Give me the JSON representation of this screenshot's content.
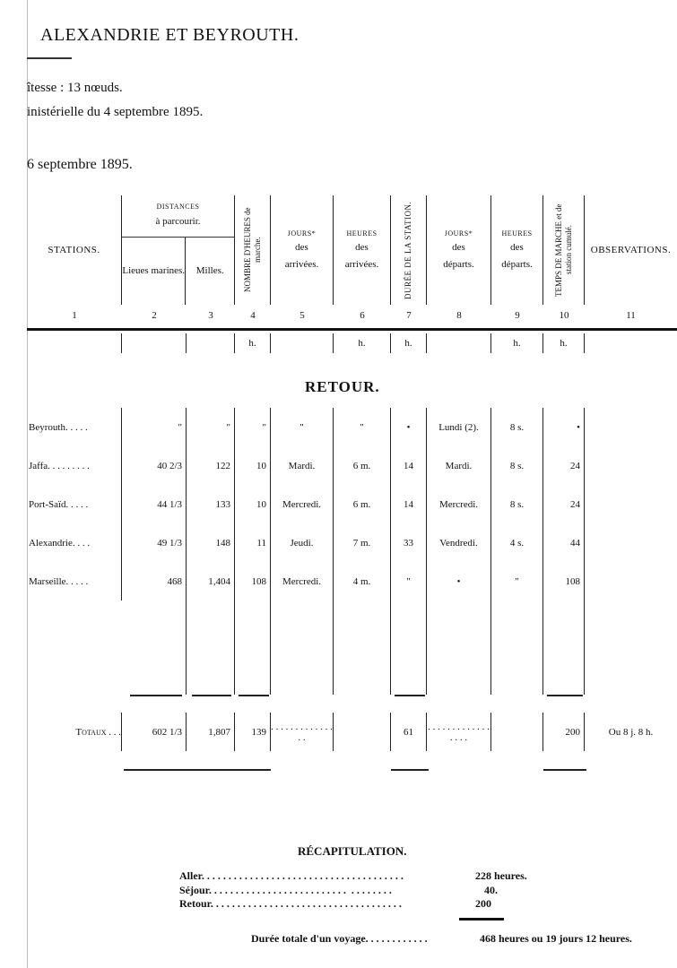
{
  "header": {
    "title": "ALEXANDRIE ET BEYROUTH.",
    "speed": "îtesse : 13 nœuds.",
    "decision": "inistérielle du 4 septembre 1895.",
    "date": "6 septembre 1895."
  },
  "table": {
    "headers": {
      "stations": "STATIONS.",
      "distances": "DISTANCES",
      "distances_sub": "à parcourir.",
      "lieues": "Lieues marines.",
      "milles": "Milles.",
      "heures_marche": "NOMBRE D'HEURES de marche.",
      "jours_arr_1": "JOURS*",
      "jours_arr_2": "des",
      "jours_arr_3": "arrivées.",
      "heures_arr_1": "HEURES",
      "heures_arr_2": "des",
      "heures_arr_3": "arrivées.",
      "duree": "DURÉE DE LA STATION.",
      "jours_dep_1": "JOURS*",
      "jours_dep_2": "des",
      "jours_dep_3": "départs.",
      "heures_dep_1": "HEURES",
      "heures_dep_2": "des",
      "heures_dep_3": "départs.",
      "temps": "TEMPS DE MARCHE et de station cumulé.",
      "observations": "OBSERVATIONS."
    },
    "numbers": [
      "1",
      "2",
      "3",
      "4",
      "5",
      "6",
      "7",
      "8",
      "9",
      "10",
      "11"
    ],
    "units": [
      "",
      "",
      "",
      "h.",
      "",
      "h.",
      "h.",
      "",
      "h.",
      "h.",
      ""
    ],
    "section": "RETOUR.",
    "rows": [
      [
        "Beyrouth. . . . .",
        "\"",
        "\"",
        "\"",
        "\"",
        "\"",
        "•",
        "Lundi (2).",
        "8 s.",
        "•",
        ""
      ],
      [
        "Jaffa. . . . . . . . .",
        "40 2/3",
        "122",
        "10",
        "Mardi.",
        "6 m.",
        "14",
        "Mardi.",
        "8 s.",
        "24",
        ""
      ],
      [
        "Port-Saïd. . . . .",
        "44 1/3",
        "133",
        "10",
        "Mercredi.",
        "6 m.",
        "14",
        "Mercredi.",
        "8 s.",
        "24",
        ""
      ],
      [
        "Alexandrie. . . .",
        "49 1/3",
        "148",
        "11",
        "Jeudi.",
        "7 m.",
        "33",
        "Vendredi.",
        "4 s.",
        "44",
        ""
      ],
      [
        "Marseille. . . . .",
        "468",
        "1,404",
        "108",
        "Mercredi.",
        "4 m.",
        "\"",
        "•",
        "\"",
        "108",
        ""
      ]
    ],
    "totals": [
      "Totaux . . .",
      "602 1/3",
      "1,807",
      "139",
      ". . . . . . . . . . . . . . .",
      "",
      "61",
      ". . . . . . . . . . . . . . . . .",
      "",
      "200",
      "Ou 8 j. 8 h."
    ]
  },
  "recap": {
    "title": "RÉCAPITULATION.",
    "items": [
      {
        "label": "Aller. . . . . . . . . . . . . . . . . . . . . . . . . . . . . . . . . . . . . .",
        "value": "228 heures."
      },
      {
        "label": "Séjour. . . . . . . . . . . . . . . . . . . . . . . . . .  . . . . . . . .",
        "value": "40."
      },
      {
        "label": "Retour. . . . . . . . . . . . . . . . . . . . . . . . . . . . . . . . . . . .",
        "value": "200"
      }
    ],
    "total_label": "Durée totale d'un voyage. . . . . . . . . . . .",
    "total_value": "468 heures ou 19 jours 12 heures."
  }
}
